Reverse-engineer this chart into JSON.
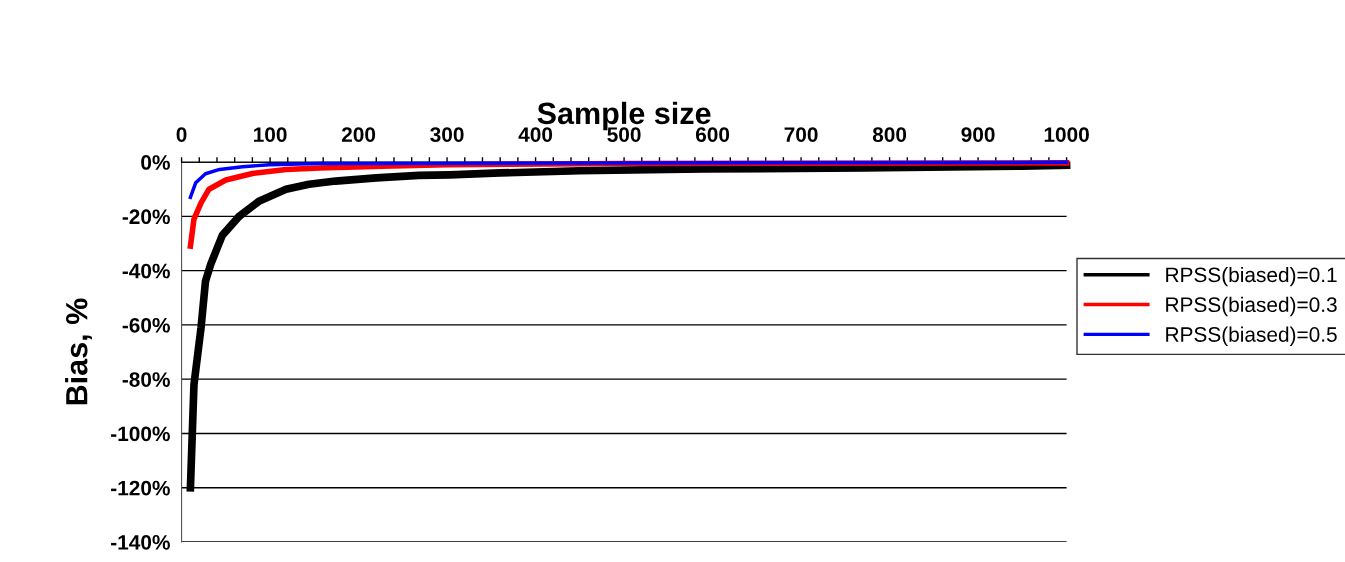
{
  "chart_data": {
    "type": "line",
    "xlabel": "Sample size",
    "ylabel": "Bias, %",
    "xlim": [
      0,
      1000
    ],
    "xticks": [
      0,
      {
        "value": 20,
        "label": null
      },
      {
        "value": 40,
        "label": null
      },
      {
        "value": 60,
        "label": null
      },
      {
        "value": 80,
        "label": null
      },
      100,
      {
        "value": 120,
        "label": null
      },
      {
        "value": 140,
        "label": null
      },
      {
        "value": 160,
        "label": null
      },
      {
        "value": 180,
        "label": null
      },
      200,
      {
        "value": 220,
        "label": null
      },
      {
        "value": 240,
        "label": null
      },
      {
        "value": 260,
        "label": null
      },
      {
        "value": 280,
        "label": null
      },
      300,
      {
        "value": 320,
        "label": null
      },
      {
        "value": 340,
        "label": null
      },
      {
        "value": 360,
        "label": null
      },
      {
        "value": 380,
        "label": null
      },
      400,
      {
        "value": 420,
        "label": null
      },
      {
        "value": 440,
        "label": null
      },
      {
        "value": 460,
        "label": null
      },
      {
        "value": 480,
        "label": null
      },
      500,
      {
        "value": 520,
        "label": null
      },
      {
        "value": 540,
        "label": null
      },
      {
        "value": 560,
        "label": null
      },
      {
        "value": 580,
        "label": null
      },
      600,
      {
        "value": 620,
        "label": null
      },
      {
        "value": 640,
        "label": null
      },
      {
        "value": 660,
        "label": null
      },
      {
        "value": 680,
        "label": null
      },
      700,
      {
        "value": 720,
        "label": null
      },
      {
        "value": 740,
        "label": null
      },
      {
        "value": 760,
        "label": null
      },
      {
        "value": 780,
        "label": null
      },
      800,
      {
        "value": 820,
        "label": null
      },
      {
        "value": 840,
        "label": null
      },
      {
        "value": 860,
        "label": null
      },
      {
        "value": 880,
        "label": null
      },
      900,
      {
        "value": 920,
        "label": null
      },
      {
        "value": 940,
        "label": null
      },
      {
        "value": 960,
        "label": null
      },
      {
        "value": 980,
        "label": null
      },
      1000
    ],
    "ylim": [
      -140,
      0
    ],
    "yticks": [
      {
        "value": 0,
        "label": "0%"
      },
      {
        "value": -20,
        "label": "-20%"
      },
      {
        "value": -40,
        "label": "-40%"
      },
      {
        "value": -60,
        "label": "-60%"
      },
      {
        "value": -80,
        "label": "-80%"
      },
      {
        "value": -100,
        "label": "-100%"
      },
      {
        "value": -120,
        "label": "-120%"
      },
      {
        "value": -140,
        "label": "-140%"
      }
    ],
    "grid": "y",
    "legend": "right",
    "marker": "none",
    "line_style": "solid",
    "series": [
      {
        "name": "RPSS(biased)=0.1",
        "color": "#000000",
        "x": [
          10,
          14,
          22,
          27,
          33,
          46,
          65,
          88,
          118,
          144,
          174,
          220,
          268,
          303,
          360,
          450,
          590,
          770,
          950,
          1000
        ],
        "values": [
          -120,
          -82,
          -61,
          -44,
          -37.6,
          -27,
          -20,
          -14.3,
          -10,
          -8.2,
          -7,
          -5.8,
          -4.9,
          -4.7,
          -4,
          -3.2,
          -2.5,
          -2.2,
          -1.5,
          -1.2
        ]
      },
      {
        "name": "RPSS(biased)=0.3",
        "color": "#ff0000",
        "x": [
          10,
          14,
          22,
          31,
          50,
          80,
          118,
          156,
          227,
          300,
          500,
          1000
        ],
        "values": [
          -31,
          -21,
          -15,
          -10,
          -6.6,
          -4.2,
          -2.7,
          -2.2,
          -1.5,
          -1,
          -0.5,
          -0.3
        ]
      },
      {
        "name": "RPSS(biased)=0.5",
        "color": "#0000ff",
        "x": [
          10,
          16,
          27,
          43,
          69,
          99,
          156,
          1000
        ],
        "values": [
          -13,
          -7.6,
          -4.3,
          -2.7,
          -1.7,
          -1,
          -0.5,
          -0.1
        ]
      }
    ]
  }
}
